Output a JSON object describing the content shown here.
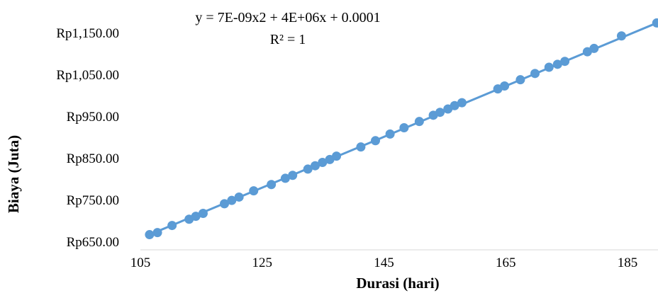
{
  "chart_data": {
    "type": "scatter",
    "xlabel": "Durasi (hari)",
    "ylabel": "Biaya (Juta)",
    "xlim": [
      105,
      190
    ],
    "ylim": [
      650,
      1150
    ],
    "x_ticks": [
      105,
      125,
      145,
      165,
      185
    ],
    "x_tick_labels": [
      "105",
      "125",
      "145",
      "165",
      "185"
    ],
    "y_ticks": [
      650,
      750,
      850,
      950,
      1050,
      1150
    ],
    "y_tick_labels": [
      "Rp650.00",
      "Rp750.00",
      "Rp850.00",
      "Rp950.00",
      "Rp1,050.00",
      "Rp1,150.00"
    ],
    "grid": false,
    "trendline": {
      "type": "polynomial",
      "equation": "y = 7E-09x2 + 4E+06x + 0.0001",
      "r_squared": "R² = 1"
    },
    "series": [
      {
        "color": "#5b9bd5",
        "x": [
          106.5,
          107.8,
          110.2,
          113.0,
          114.1,
          115.3,
          118.8,
          120.0,
          121.2,
          123.6,
          126.5,
          128.8,
          130.0,
          132.5,
          133.7,
          134.9,
          136.1,
          137.2,
          141.2,
          143.6,
          146.0,
          148.3,
          150.8,
          153.1,
          154.2,
          155.5,
          156.6,
          157.8,
          163.7,
          164.8,
          167.4,
          169.8,
          172.1,
          173.5,
          174.7,
          178.4,
          179.5,
          184.0,
          189.8
        ],
        "y": [
          666,
          671,
          688,
          703,
          710,
          717,
          740,
          748,
          756,
          771,
          786,
          801,
          808,
          823,
          831,
          839,
          846,
          854,
          876,
          891,
          907,
          922,
          937,
          952,
          959,
          967,
          975,
          982,
          1015,
          1022,
          1037,
          1052,
          1067,
          1074,
          1081,
          1104,
          1112,
          1142,
          1173
        ]
      }
    ]
  }
}
